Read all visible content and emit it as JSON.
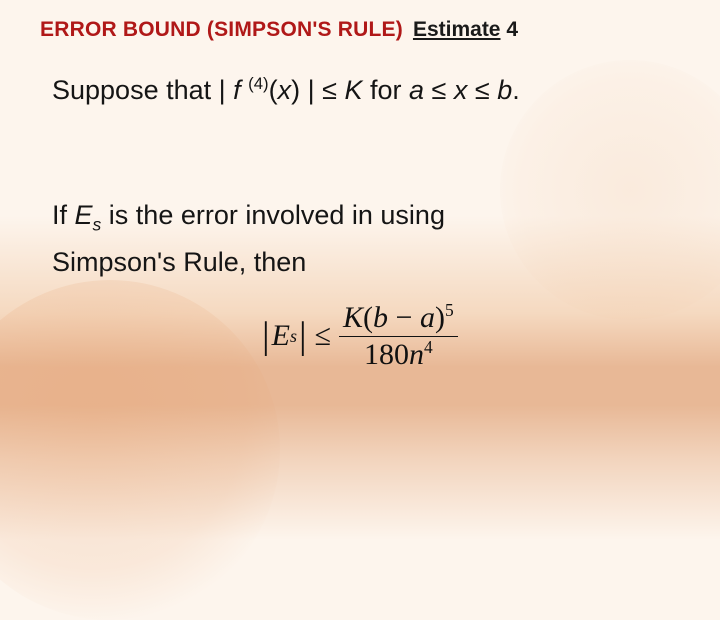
{
  "title": {
    "main": "ERROR BOUND (SIMPSON'S RULE)",
    "sub_prefix": "Estimate",
    "sub_number": "4"
  },
  "body": {
    "suppose": "Suppose that ",
    "bar1": "|",
    "f": " f ",
    "super4": "(4)",
    "of_x": "(",
    "x": "x",
    "close_paren": ") ",
    "bar2": "|",
    "le": " ≤ ",
    "K": "K",
    "for": " for ",
    "a": "a",
    "le2": " ≤ ",
    "xv": "x",
    "le3": " ≤ ",
    "b": "b",
    "dot": ".",
    "if_txt": "If ",
    "E": "E",
    "s": "s",
    "err_rest": " is the error involved in using",
    "simpson": "Simpson's Rule, then"
  },
  "formula": {
    "bar_l": "|",
    "E": "E",
    "s": "s",
    "bar_r": "|",
    "le": "≤",
    "K": "K",
    "open": "(",
    "b": "b",
    "minus": " − ",
    "a": "a",
    "close": ")",
    "p5": "5",
    "den_180": "180",
    "n": "n",
    "p4": "4"
  },
  "colors": {
    "title_main": "#b01818",
    "text": "#151515",
    "bg_top": "#fdf5ed",
    "bg_band": "#e8b896"
  }
}
